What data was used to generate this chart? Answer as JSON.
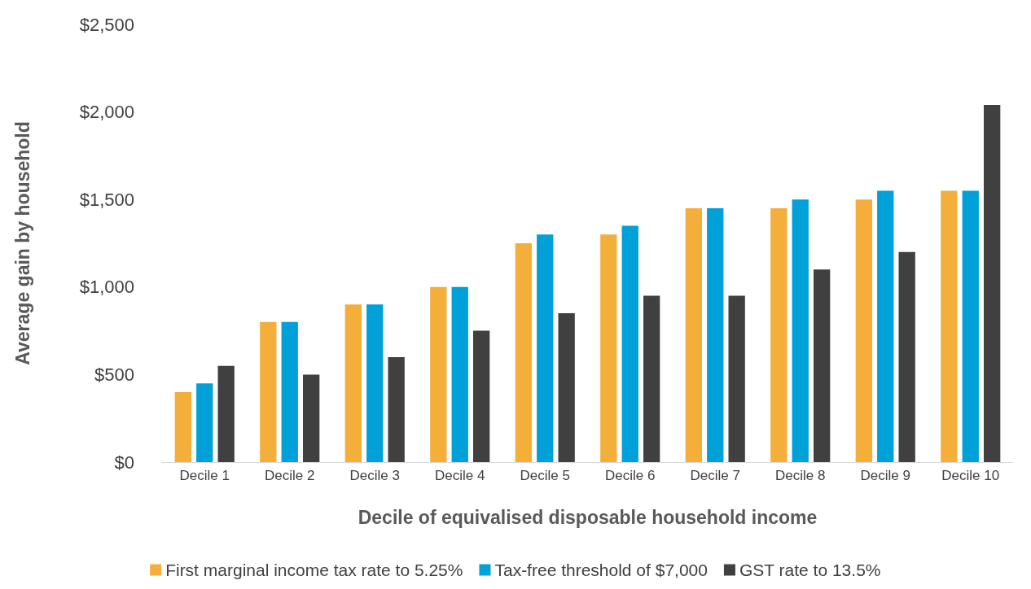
{
  "chart_data": {
    "type": "bar",
    "xlabel": "Decile of equivalised disposable household income",
    "ylabel": "Average gain by household",
    "categories": [
      "Decile 1",
      "Decile 2",
      "Decile 3",
      "Decile 4",
      "Decile 5",
      "Decile 6",
      "Decile 7",
      "Decile 8",
      "Decile 9",
      "Decile 10"
    ],
    "series": [
      {
        "name": "First marginal income tax rate to 5.25%",
        "color": "#f4ae3a",
        "values": [
          400,
          800,
          900,
          1000,
          1250,
          1300,
          1450,
          1450,
          1500,
          1550
        ]
      },
      {
        "name": "Tax-free threshold of $7,000",
        "color": "#00a0d8",
        "values": [
          450,
          800,
          900,
          1000,
          1300,
          1350,
          1450,
          1500,
          1550,
          1550
        ]
      },
      {
        "name": "GST rate to 13.5%",
        "color": "#404040",
        "values": [
          550,
          500,
          600,
          750,
          850,
          950,
          950,
          1100,
          1200,
          2040
        ]
      }
    ],
    "ylim": [
      0,
      2500
    ],
    "yticks": [
      {
        "value": 0,
        "label": "$0"
      },
      {
        "value": 500,
        "label": "$500"
      },
      {
        "value": 1000,
        "label": "$1,000"
      },
      {
        "value": 1500,
        "label": "$1,500"
      },
      {
        "value": 2000,
        "label": "$2,000"
      },
      {
        "value": 2500,
        "label": "$2,500"
      }
    ],
    "grid": false,
    "legend": "bottom"
  }
}
